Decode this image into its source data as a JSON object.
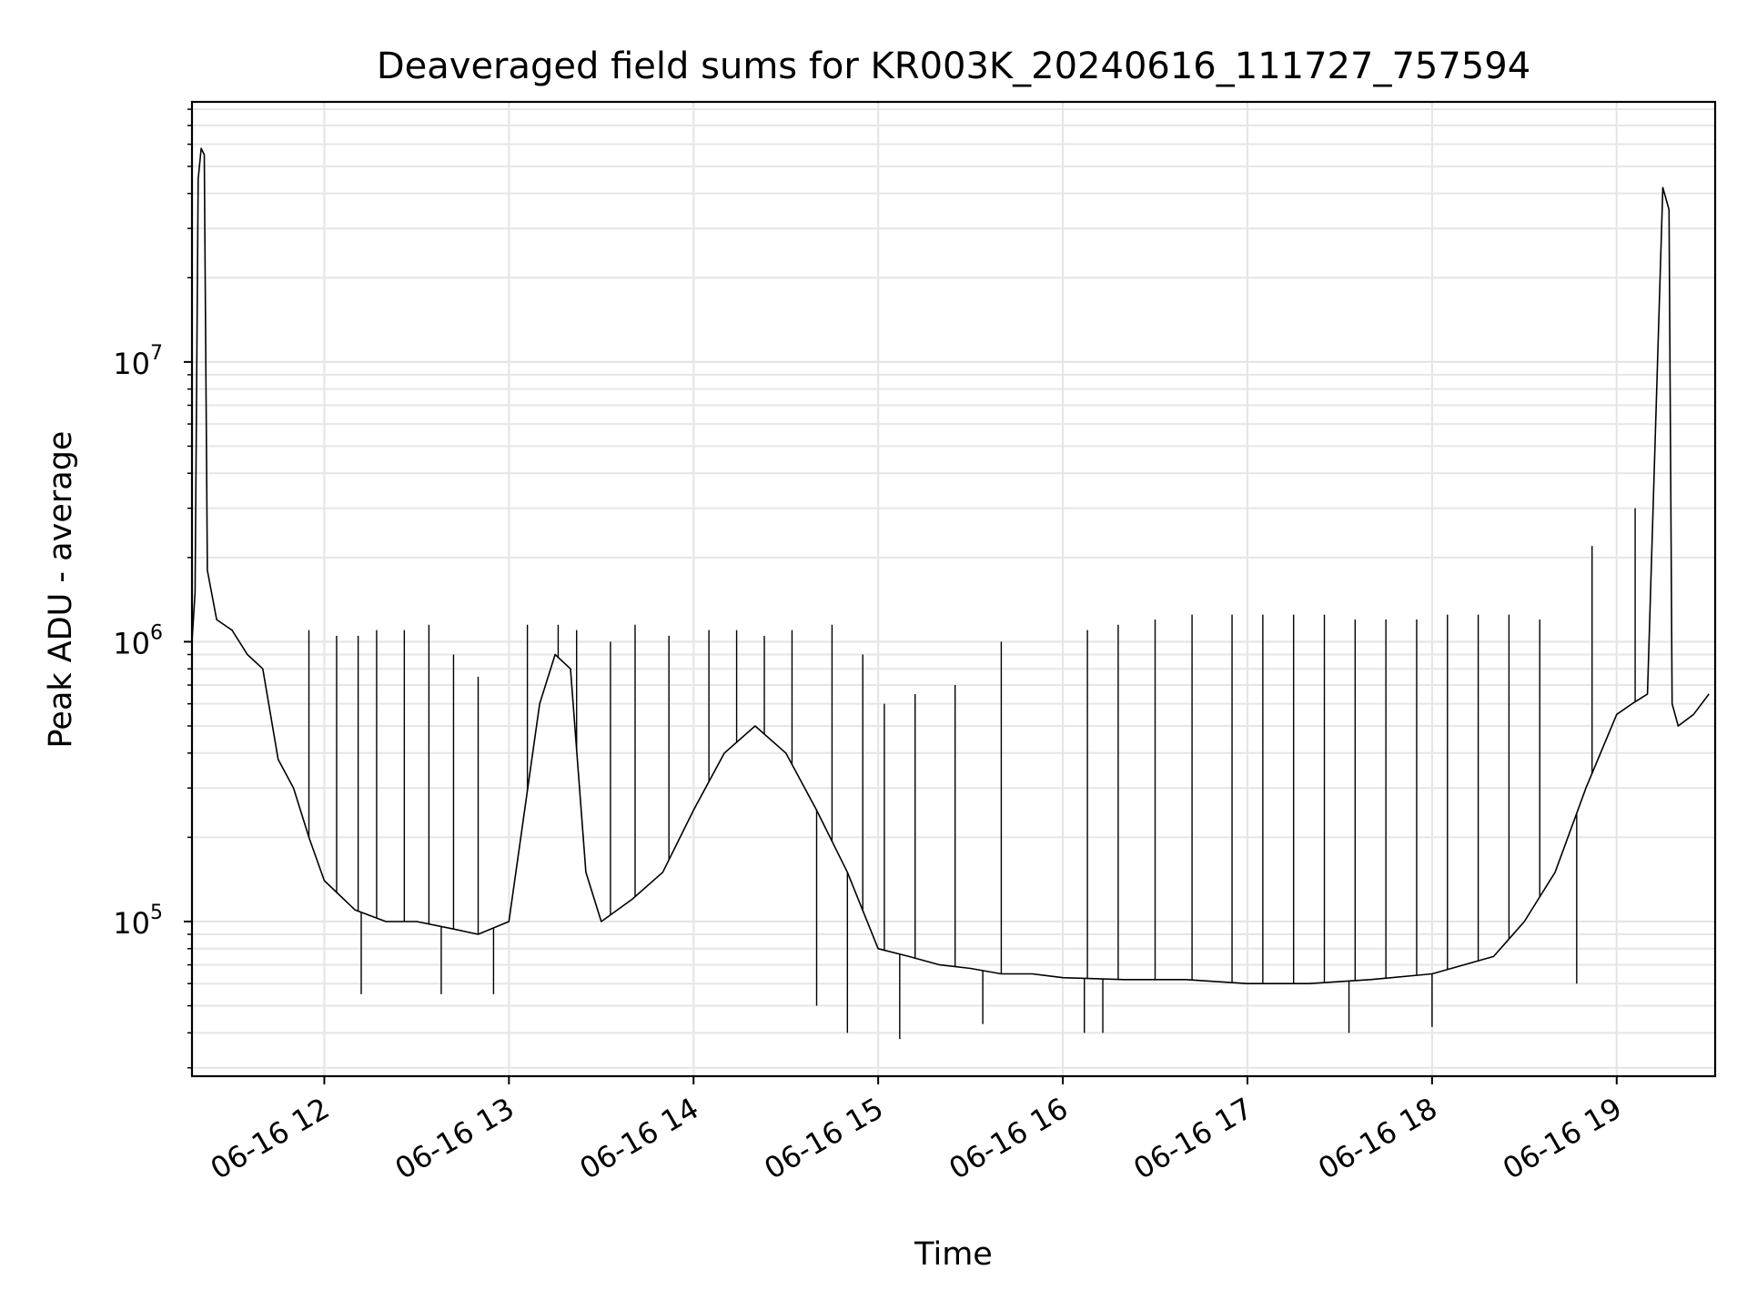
{
  "chart_data": {
    "type": "line",
    "title": "Deaveraged field sums for KR003K_20240616_111727_757594",
    "xlabel": "Time",
    "ylabel": "Peak ADU - average",
    "y_scale": "log",
    "ylim": [
      28000,
      85000000
    ],
    "xlim": [
      "06-16 11:17",
      "06-16 19:32"
    ],
    "grid": "on (major and minor)",
    "line_color": "#000000",
    "grid_color": "#e6e6e6",
    "x_ticks": [
      {
        "t": "06-16 12:00",
        "label": "06-16 12"
      },
      {
        "t": "06-16 13:00",
        "label": "06-16 13"
      },
      {
        "t": "06-16 14:00",
        "label": "06-16 14"
      },
      {
        "t": "06-16 15:00",
        "label": "06-16 15"
      },
      {
        "t": "06-16 16:00",
        "label": "06-16 16"
      },
      {
        "t": "06-16 17:00",
        "label": "06-16 17"
      },
      {
        "t": "06-16 18:00",
        "label": "06-16 18"
      },
      {
        "t": "06-16 19:00",
        "label": "06-16 19"
      }
    ],
    "y_ticks": [
      {
        "value": 100000,
        "mantissa": "10",
        "exponent": "5"
      },
      {
        "value": 1000000,
        "mantissa": "10",
        "exponent": "6"
      },
      {
        "value": 10000000,
        "mantissa": "10",
        "exponent": "7"
      }
    ],
    "series": [
      {
        "points": [
          [
            "06-16 11:17",
            1000000
          ],
          [
            "06-16 11:18",
            1500000
          ],
          [
            "06-16 11:19",
            45000000
          ],
          [
            "06-16 11:20",
            58000000
          ],
          [
            "06-16 11:21",
            55000000
          ],
          [
            "06-16 11:22",
            1800000
          ],
          [
            "06-16 11:25",
            1200000
          ],
          [
            "06-16 11:30",
            1100000
          ],
          [
            "06-16 11:35",
            900000
          ],
          [
            "06-16 11:40",
            800000
          ],
          [
            "06-16 11:45",
            380000
          ],
          [
            "06-16 11:50",
            300000
          ],
          [
            "06-16 11:55",
            200000
          ],
          [
            "06-16 12:00",
            140000
          ],
          [
            "06-16 12:10",
            110000
          ],
          [
            "06-16 12:20",
            100000
          ],
          [
            "06-16 12:30",
            100000
          ],
          [
            "06-16 12:40",
            95000
          ],
          [
            "06-16 12:50",
            90000
          ],
          [
            "06-16 13:00",
            100000
          ],
          [
            "06-16 13:10",
            600000
          ],
          [
            "06-16 13:15",
            900000
          ],
          [
            "06-16 13:20",
            800000
          ],
          [
            "06-16 13:25",
            150000
          ],
          [
            "06-16 13:30",
            100000
          ],
          [
            "06-16 13:40",
            120000
          ],
          [
            "06-16 13:50",
            150000
          ],
          [
            "06-16 14:00",
            250000
          ],
          [
            "06-16 14:10",
            400000
          ],
          [
            "06-16 14:20",
            500000
          ],
          [
            "06-16 14:30",
            400000
          ],
          [
            "06-16 14:40",
            250000
          ],
          [
            "06-16 14:50",
            150000
          ],
          [
            "06-16 15:00",
            80000
          ],
          [
            "06-16 15:10",
            75000
          ],
          [
            "06-16 15:20",
            70000
          ],
          [
            "06-16 15:30",
            68000
          ],
          [
            "06-16 15:40",
            65000
          ],
          [
            "06-16 15:50",
            65000
          ],
          [
            "06-16 16:00",
            63000
          ],
          [
            "06-16 16:20",
            62000
          ],
          [
            "06-16 16:40",
            62000
          ],
          [
            "06-16 17:00",
            60000
          ],
          [
            "06-16 17:20",
            60000
          ],
          [
            "06-16 17:40",
            62000
          ],
          [
            "06-16 18:00",
            65000
          ],
          [
            "06-16 18:20",
            75000
          ],
          [
            "06-16 18:30",
            100000
          ],
          [
            "06-16 18:40",
            150000
          ],
          [
            "06-16 18:50",
            300000
          ],
          [
            "06-16 19:00",
            550000
          ],
          [
            "06-16 19:05",
            600000
          ],
          [
            "06-16 19:10",
            650000
          ],
          [
            "06-16 19:15",
            42000000
          ],
          [
            "06-16 19:17",
            35000000
          ],
          [
            "06-16 19:18",
            600000
          ],
          [
            "06-16 19:20",
            500000
          ],
          [
            "06-16 19:25",
            550000
          ],
          [
            "06-16 19:30",
            650000
          ]
        ],
        "spikes": [
          [
            "06-16 11:55",
            1100000
          ],
          [
            "06-16 12:04",
            1050000
          ],
          [
            "06-16 12:11",
            1050000
          ],
          [
            "06-16 12:17",
            1100000
          ],
          [
            "06-16 12:26",
            1100000
          ],
          [
            "06-16 12:34",
            1150000
          ],
          [
            "06-16 12:42",
            900000
          ],
          [
            "06-16 12:50",
            750000
          ],
          [
            "06-16 13:06",
            1150000
          ],
          [
            "06-16 13:16",
            1150000
          ],
          [
            "06-16 13:22",
            1100000
          ],
          [
            "06-16 13:33",
            1000000
          ],
          [
            "06-16 13:41",
            1150000
          ],
          [
            "06-16 13:52",
            1050000
          ],
          [
            "06-16 14:05",
            1100000
          ],
          [
            "06-16 14:14",
            1100000
          ],
          [
            "06-16 14:23",
            1050000
          ],
          [
            "06-16 14:32",
            1100000
          ],
          [
            "06-16 14:45",
            1150000
          ],
          [
            "06-16 14:55",
            900000
          ],
          [
            "06-16 15:02",
            600000
          ],
          [
            "06-16 15:12",
            650000
          ],
          [
            "06-16 15:25",
            700000
          ],
          [
            "06-16 15:40",
            1000000
          ],
          [
            "06-16 16:08",
            1100000
          ],
          [
            "06-16 16:18",
            1150000
          ],
          [
            "06-16 16:30",
            1200000
          ],
          [
            "06-16 16:42",
            1250000
          ],
          [
            "06-16 16:55",
            1250000
          ],
          [
            "06-16 17:05",
            1250000
          ],
          [
            "06-16 17:15",
            1250000
          ],
          [
            "06-16 17:25",
            1250000
          ],
          [
            "06-16 17:35",
            1200000
          ],
          [
            "06-16 17:45",
            1200000
          ],
          [
            "06-16 17:55",
            1200000
          ],
          [
            "06-16 18:05",
            1250000
          ],
          [
            "06-16 18:15",
            1250000
          ],
          [
            "06-16 18:25",
            1250000
          ],
          [
            "06-16 18:35",
            1200000
          ],
          [
            "06-16 18:52",
            2200000
          ],
          [
            "06-16 19:06",
            3000000
          ]
        ],
        "dips": [
          [
            "06-16 12:12",
            55000
          ],
          [
            "06-16 12:38",
            55000
          ],
          [
            "06-16 12:55",
            55000
          ],
          [
            "06-16 14:40",
            50000
          ],
          [
            "06-16 14:50",
            40000
          ],
          [
            "06-16 15:07",
            38000
          ],
          [
            "06-16 15:34",
            43000
          ],
          [
            "06-16 16:07",
            40000
          ],
          [
            "06-16 16:13",
            40000
          ],
          [
            "06-16 17:33",
            40000
          ],
          [
            "06-16 18:00",
            42000
          ],
          [
            "06-16 18:47",
            60000
          ]
        ]
      }
    ]
  }
}
